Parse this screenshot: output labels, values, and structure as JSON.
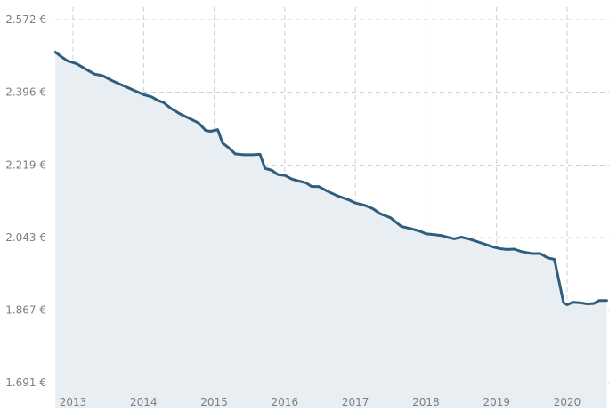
{
  "chart_data": {
    "type": "area",
    "title": "",
    "xlabel": "",
    "ylabel": "",
    "y_ticks": [
      "2.572 €",
      "2.396 €",
      "2.219 €",
      "2.043 €",
      "1.867 €",
      "1.691 €"
    ],
    "y_tick_values": [
      2572,
      2396,
      2219,
      2043,
      1867,
      1691
    ],
    "x_ticks": [
      "2013",
      "2014",
      "2015",
      "2016",
      "2017",
      "2018",
      "2019",
      "2020"
    ],
    "x_tick_values": [
      2013,
      2014,
      2015,
      2016,
      2017,
      2018,
      2019,
      2020
    ],
    "xlim": [
      2012.75,
      2020.56
    ],
    "ylim": [
      1691,
      2572
    ],
    "grid": true,
    "legend": "none",
    "colors": {
      "line": "#2e5d7e",
      "fill": "#e9eef3",
      "grid": "#cfcfcf",
      "tick_text": "#7f7f7f"
    },
    "series": [
      {
        "points": [
          [
            2012.75,
            2493
          ],
          [
            2012.82,
            2484
          ],
          [
            2012.92,
            2472
          ],
          [
            2013.05,
            2465
          ],
          [
            2013.15,
            2455
          ],
          [
            2013.3,
            2440
          ],
          [
            2013.42,
            2436
          ],
          [
            2013.55,
            2424
          ],
          [
            2013.67,
            2415
          ],
          [
            2013.8,
            2405
          ],
          [
            2013.92,
            2396
          ],
          [
            2014.0,
            2390
          ],
          [
            2014.12,
            2384
          ],
          [
            2014.2,
            2376
          ],
          [
            2014.28,
            2371
          ],
          [
            2014.4,
            2355
          ],
          [
            2014.52,
            2343
          ],
          [
            2014.65,
            2332
          ],
          [
            2014.78,
            2321
          ],
          [
            2014.88,
            2303
          ],
          [
            2014.95,
            2301
          ],
          [
            2015.05,
            2305
          ],
          [
            2015.12,
            2272
          ],
          [
            2015.2,
            2262
          ],
          [
            2015.3,
            2246
          ],
          [
            2015.42,
            2244
          ],
          [
            2015.55,
            2244
          ],
          [
            2015.65,
            2245
          ],
          [
            2015.72,
            2211
          ],
          [
            2015.82,
            2206
          ],
          [
            2015.9,
            2196
          ],
          [
            2016.0,
            2194
          ],
          [
            2016.1,
            2185
          ],
          [
            2016.2,
            2180
          ],
          [
            2016.3,
            2176
          ],
          [
            2016.38,
            2167
          ],
          [
            2016.48,
            2167
          ],
          [
            2016.6,
            2156
          ],
          [
            2016.75,
            2144
          ],
          [
            2016.9,
            2135
          ],
          [
            2017.0,
            2127
          ],
          [
            2017.12,
            2122
          ],
          [
            2017.25,
            2113
          ],
          [
            2017.35,
            2101
          ],
          [
            2017.5,
            2091
          ],
          [
            2017.65,
            2070
          ],
          [
            2017.8,
            2064
          ],
          [
            2017.92,
            2058
          ],
          [
            2018.0,
            2052
          ],
          [
            2018.12,
            2050
          ],
          [
            2018.22,
            2048
          ],
          [
            2018.3,
            2044
          ],
          [
            2018.4,
            2040
          ],
          [
            2018.5,
            2044
          ],
          [
            2018.62,
            2039
          ],
          [
            2018.8,
            2029
          ],
          [
            2018.95,
            2020
          ],
          [
            2019.05,
            2016
          ],
          [
            2019.15,
            2014
          ],
          [
            2019.25,
            2015
          ],
          [
            2019.35,
            2009
          ],
          [
            2019.5,
            2004
          ],
          [
            2019.62,
            2004
          ],
          [
            2019.72,
            1994
          ],
          [
            2019.82,
            1990
          ],
          [
            2019.95,
            1885
          ],
          [
            2020.0,
            1880
          ],
          [
            2020.08,
            1886
          ],
          [
            2020.18,
            1885
          ],
          [
            2020.28,
            1882
          ],
          [
            2020.38,
            1883
          ],
          [
            2020.45,
            1890
          ],
          [
            2020.56,
            1890
          ]
        ]
      }
    ]
  }
}
